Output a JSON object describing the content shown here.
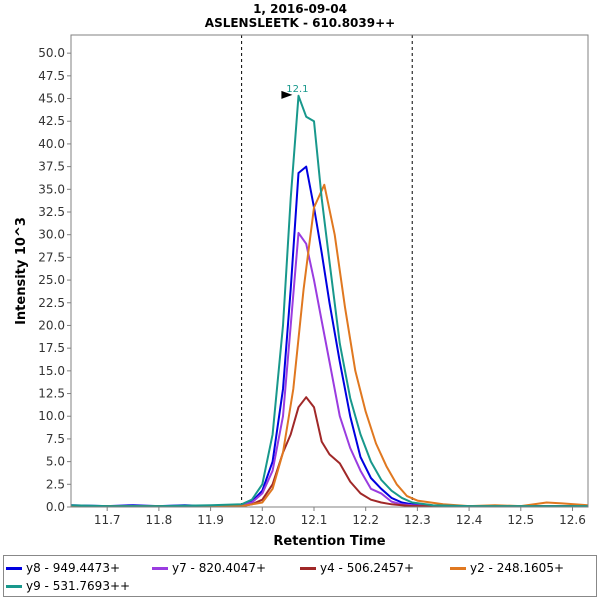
{
  "chart_data": {
    "type": "line",
    "title": "1, 2016-09-04",
    "subtitle": "ASLENSLEETK - 610.8039++",
    "xlabel": "Retention Time",
    "ylabel": "Intensity 10^3",
    "xlim": [
      11.63,
      12.63
    ],
    "ylim": [
      0,
      52
    ],
    "x_ticks": [
      "11.7",
      "11.8",
      "11.9",
      "12.0",
      "12.1",
      "12.2",
      "12.3",
      "12.4",
      "12.5",
      "12.6"
    ],
    "y_ticks": [
      "0.0",
      "2.5",
      "5.0",
      "7.5",
      "10.0",
      "12.5",
      "15.0",
      "17.5",
      "20.0",
      "22.5",
      "25.0",
      "27.5",
      "30.0",
      "32.5",
      "35.0",
      "37.5",
      "40.0",
      "42.5",
      "45.0",
      "47.5",
      "50.0"
    ],
    "integration_bounds": [
      11.96,
      12.29
    ],
    "peak_annotation": {
      "label": "12.1",
      "x": 12.066,
      "y": 45.3
    },
    "legend_position": "bottom",
    "series": [
      {
        "name": "y8 - 949.4473+",
        "color": "#0000e0",
        "x": [
          11.63,
          11.7,
          11.75,
          11.8,
          11.85,
          11.9,
          11.96,
          11.98,
          12.0,
          12.02,
          12.04,
          12.055,
          12.07,
          12.085,
          12.1,
          12.115,
          12.13,
          12.15,
          12.17,
          12.19,
          12.21,
          12.23,
          12.25,
          12.27,
          12.29,
          12.33,
          12.4,
          12.5,
          12.63
        ],
        "values": [
          0.2,
          0.1,
          0.2,
          0.1,
          0.2,
          0.1,
          0.2,
          0.6,
          1.8,
          5,
          13,
          24,
          36.8,
          37.5,
          33,
          28,
          22.5,
          16,
          10,
          5.5,
          3.2,
          2,
          1,
          0.5,
          0.3,
          0.1,
          0.1,
          0.1,
          0.1
        ]
      },
      {
        "name": "y7 - 820.4047+",
        "color": "#9a3ce0",
        "x": [
          11.63,
          11.7,
          11.8,
          11.9,
          11.96,
          11.98,
          12.0,
          12.02,
          12.04,
          12.055,
          12.07,
          12.085,
          12.1,
          12.115,
          12.13,
          12.15,
          12.17,
          12.19,
          12.21,
          12.23,
          12.25,
          12.27,
          12.29,
          12.33,
          12.4,
          12.5,
          12.63
        ],
        "values": [
          0.1,
          0.1,
          0.1,
          0.1,
          0.2,
          0.5,
          1.5,
          4,
          10,
          20,
          30.2,
          29,
          25,
          20.5,
          16,
          10,
          6.5,
          4,
          2,
          1.5,
          0.6,
          0.3,
          0.2,
          0.1,
          0.1,
          0.1,
          0.1
        ]
      },
      {
        "name": "y4 - 506.2457+",
        "color": "#a02828",
        "x": [
          11.63,
          11.7,
          11.8,
          11.9,
          11.96,
          11.98,
          12.0,
          12.02,
          12.04,
          12.055,
          12.07,
          12.085,
          12.1,
          12.115,
          12.13,
          12.15,
          12.17,
          12.19,
          12.21,
          12.23,
          12.25,
          12.27,
          12.29,
          12.33,
          12.4,
          12.5,
          12.63
        ],
        "values": [
          0.1,
          0.1,
          0.1,
          0.1,
          0.1,
          0.3,
          0.8,
          2.5,
          6,
          8,
          11,
          12.1,
          11,
          7.2,
          5.8,
          4.8,
          2.8,
          1.5,
          0.8,
          0.5,
          0.3,
          0.2,
          0.1,
          0.1,
          0.1,
          0.1,
          0.1
        ]
      },
      {
        "name": "y2 - 248.1605+",
        "color": "#e07820",
        "x": [
          11.63,
          11.7,
          11.8,
          11.9,
          11.96,
          11.98,
          12.0,
          12.02,
          12.04,
          12.06,
          12.08,
          12.1,
          12.12,
          12.14,
          12.16,
          12.18,
          12.2,
          12.22,
          12.24,
          12.26,
          12.28,
          12.3,
          12.35,
          12.4,
          12.45,
          12.5,
          12.55,
          12.58,
          12.63
        ],
        "values": [
          0.1,
          0.1,
          0.1,
          0.1,
          0.1,
          0.3,
          0.5,
          2,
          6,
          13,
          24,
          33,
          35.5,
          30,
          22,
          15,
          10.5,
          7,
          4.5,
          2.5,
          1.2,
          0.7,
          0.3,
          0.1,
          0.2,
          0.1,
          0.5,
          0.4,
          0.2
        ]
      },
      {
        "name": "y9 - 531.7693++",
        "color": "#18988c",
        "x": [
          11.63,
          11.7,
          11.8,
          11.9,
          11.96,
          11.98,
          12.0,
          12.02,
          12.04,
          12.055,
          12.07,
          12.085,
          12.1,
          12.115,
          12.13,
          12.15,
          12.17,
          12.19,
          12.21,
          12.23,
          12.25,
          12.27,
          12.29,
          12.33,
          12.4,
          12.5,
          12.63
        ],
        "values": [
          0.2,
          0.1,
          0.1,
          0.2,
          0.3,
          0.8,
          2.5,
          8,
          20,
          34,
          45.3,
          43,
          42.5,
          34,
          27,
          18,
          12,
          8,
          5,
          3,
          1.8,
          1,
          0.5,
          0.2,
          0.1,
          0.1,
          0.1
        ]
      }
    ]
  }
}
